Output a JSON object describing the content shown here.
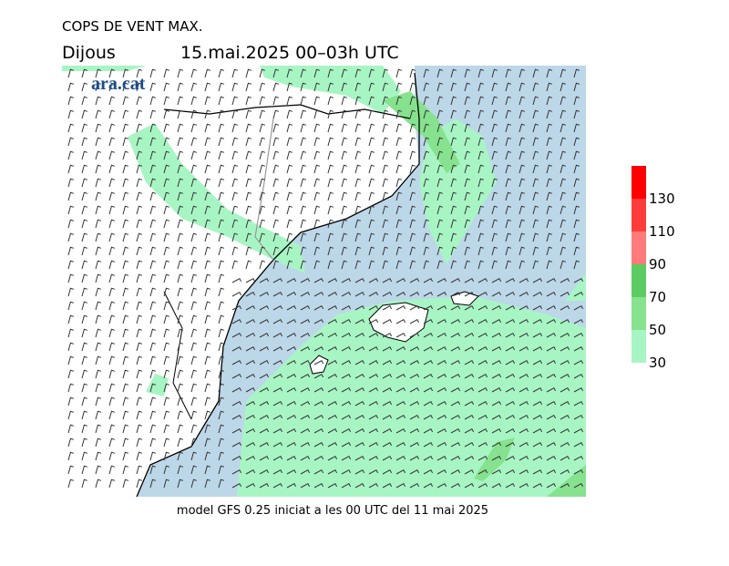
{
  "header": {
    "title": "COPS DE VENT MAX.",
    "day": "Dijous",
    "date": "15.mai.2025 00–03h UTC"
  },
  "logo": "ara.cat",
  "colorbar": {
    "ticks": [
      30,
      50,
      70,
      90,
      110,
      130
    ],
    "colors": [
      "#a8f5c4",
      "#86e28e",
      "#5ccc62",
      "#ff7a7a",
      "#ff3c3c",
      "#ff0000"
    ]
  },
  "footer": "model GFS 0.25 iniciat a les 00 UTC del 11 mai 2025"
}
